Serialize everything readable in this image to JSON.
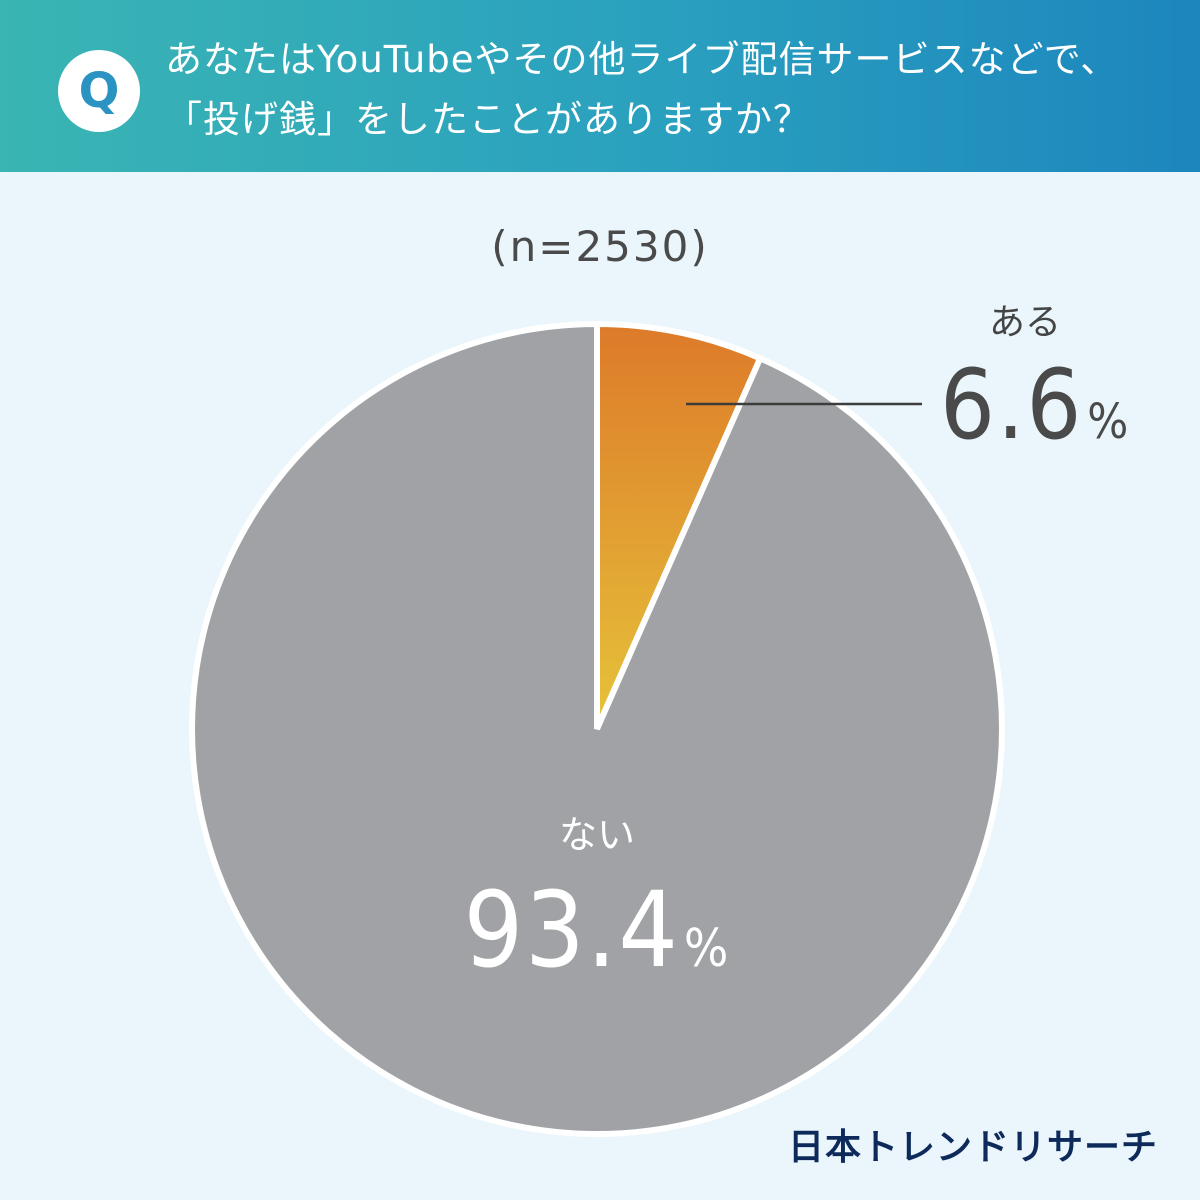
{
  "question": {
    "badge": "Q",
    "line1": "あなたはYouTubeやその他ライブ配信サービスなどで、",
    "line2": "「投げ銭」をしたことがありますか？"
  },
  "sample_size": "(n=2530)",
  "brand": "日本トレンドリサーチ",
  "colors": {
    "header_start": "#3ab5b3",
    "header_end": "#1c86bd",
    "slice_yes_top": "#dd7a2a",
    "slice_yes_bottom": "#e6c33a",
    "slice_no": "#a0a2a5",
    "background": "#eaf6fc"
  },
  "chart_data": {
    "type": "pie",
    "slices": [
      {
        "label": "ある",
        "value": 6.6,
        "display": "6.6",
        "unit": "%"
      },
      {
        "label": "ない",
        "value": 93.4,
        "display": "93.4",
        "unit": "%"
      }
    ]
  }
}
